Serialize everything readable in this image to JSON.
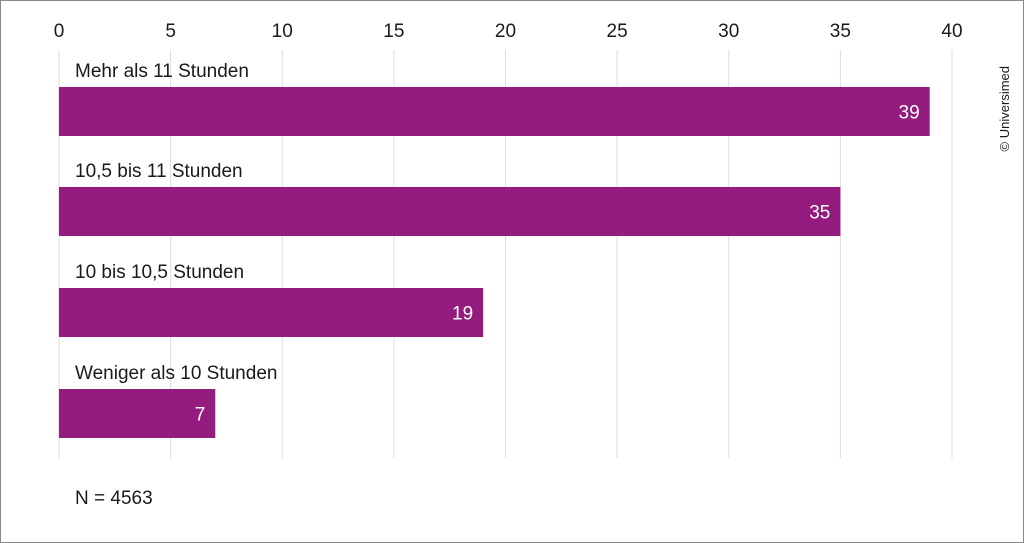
{
  "chart_data": {
    "type": "bar",
    "orientation": "horizontal",
    "categories": [
      "Mehr als 11 Stunden",
      "10,5 bis 11 Stunden",
      "10 bis 10,5 Stunden",
      "Weniger als 10 Stunden"
    ],
    "values": [
      39,
      35,
      19,
      7
    ],
    "xlim": [
      0,
      40
    ],
    "x_ticks": [
      0,
      5,
      10,
      15,
      20,
      25,
      30,
      35,
      40
    ],
    "x_axis_position": "top",
    "grid": true,
    "legend": "none",
    "bar_color": "#931c7e",
    "grid_color": "#dddddd",
    "note": "N = 4563",
    "credit": "© Universimed"
  }
}
